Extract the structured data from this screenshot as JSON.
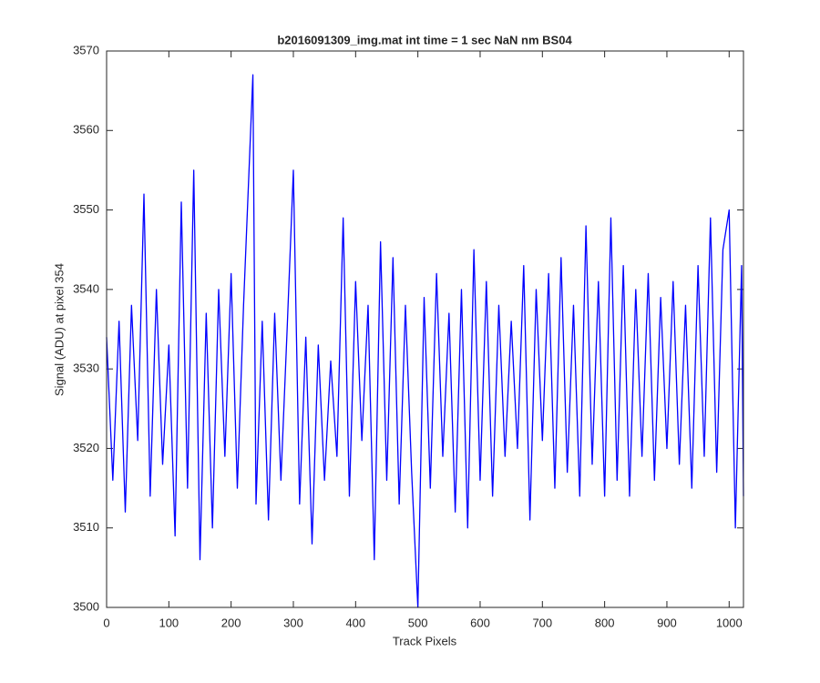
{
  "chart_data": {
    "type": "line",
    "title": "b2016091309_img.mat int time = 1 sec  NaN nm BS04",
    "x_label": "Track Pixels",
    "y_label": "Signal (ADU) at pixel 354",
    "color": "#0000ff",
    "x": [
      0,
      10,
      20,
      30,
      40,
      50,
      60,
      70,
      80,
      90,
      100,
      110,
      120,
      130,
      140,
      150,
      160,
      170,
      180,
      190,
      200,
      210,
      220,
      235,
      240,
      250,
      260,
      270,
      280,
      290,
      300,
      310,
      320,
      330,
      340,
      350,
      360,
      370,
      380,
      390,
      400,
      410,
      420,
      430,
      440,
      450,
      460,
      470,
      480,
      490,
      500,
      510,
      520,
      530,
      540,
      550,
      560,
      570,
      580,
      590,
      600,
      610,
      620,
      630,
      640,
      650,
      660,
      670,
      680,
      690,
      700,
      710,
      720,
      730,
      740,
      750,
      760,
      770,
      780,
      790,
      800,
      810,
      820,
      830,
      840,
      850,
      860,
      870,
      880,
      890,
      900,
      910,
      920,
      930,
      940,
      950,
      960,
      970,
      980,
      990,
      1000,
      1010,
      1020,
      1023
    ],
    "values": [
      3534,
      3516,
      3536,
      3512,
      3538,
      3521,
      3552,
      3514,
      3540,
      3518,
      3533,
      3509,
      3551,
      3515,
      3555,
      3506,
      3537,
      3510,
      3540,
      3519,
      3542,
      3515,
      3538,
      3567,
      3513,
      3536,
      3511,
      3537,
      3516,
      3535,
      3555,
      3513,
      3534,
      3508,
      3533,
      3516,
      3531,
      3519,
      3549,
      3514,
      3541,
      3521,
      3538,
      3506,
      3546,
      3516,
      3544,
      3513,
      3538,
      3517,
      3500,
      3539,
      3515,
      3542,
      3519,
      3537,
      3512,
      3540,
      3510,
      3545,
      3516,
      3541,
      3514,
      3538,
      3519,
      3536,
      3520,
      3543,
      3511,
      3540,
      3521,
      3542,
      3515,
      3544,
      3517,
      3538,
      3514,
      3548,
      3518,
      3541,
      3514,
      3549,
      3516,
      3543,
      3514,
      3540,
      3519,
      3542,
      3516,
      3539,
      3520,
      3541,
      3518,
      3538,
      3515,
      3543,
      3519,
      3549,
      3517,
      3545,
      3550,
      3510,
      3543,
      3514
    ],
    "xlim": [
      0,
      1023
    ],
    "ylim": [
      3500,
      3570
    ],
    "xticks": [
      0,
      100,
      200,
      300,
      400,
      500,
      600,
      700,
      800,
      900,
      1000
    ],
    "yticks": [
      3500,
      3510,
      3520,
      3530,
      3540,
      3550,
      3560,
      3570
    ],
    "grid": false
  }
}
